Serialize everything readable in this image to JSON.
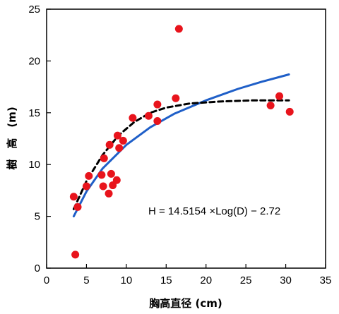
{
  "chart_data": {
    "type": "scatter",
    "xlabel": "胸高直径 (cm)",
    "ylabel": "樹　高　(m)",
    "xlim": [
      0,
      35
    ],
    "ylim": [
      0,
      25
    ],
    "xticks": [
      "0",
      "5",
      "10",
      "15",
      "20",
      "25",
      "30",
      "35"
    ],
    "yticks": [
      "0",
      "5",
      "10",
      "15",
      "20",
      "25"
    ],
    "grid": false,
    "equation": "H =  14.5154 ×Log(D)  − 2.72",
    "colors": {
      "points": "#e8141c",
      "fit_solid": "#1f5fc8",
      "fit_dashed": "#000000"
    },
    "series": [
      {
        "style": "scatter",
        "points": [
          [
            3.4,
            6.9
          ],
          [
            3.6,
            1.3
          ],
          [
            3.9,
            5.9
          ],
          [
            5.0,
            7.9
          ],
          [
            5.3,
            8.9
          ],
          [
            6.9,
            9.0
          ],
          [
            7.1,
            7.9
          ],
          [
            7.2,
            10.6
          ],
          [
            7.8,
            7.2
          ],
          [
            7.9,
            11.9
          ],
          [
            8.1,
            9.1
          ],
          [
            8.3,
            8.0
          ],
          [
            8.8,
            8.5
          ],
          [
            8.9,
            12.8
          ],
          [
            9.1,
            11.6
          ],
          [
            9.6,
            12.3
          ],
          [
            10.8,
            14.5
          ],
          [
            12.8,
            14.7
          ],
          [
            13.9,
            14.2
          ],
          [
            13.9,
            15.8
          ],
          [
            16.2,
            16.4
          ],
          [
            16.6,
            23.1
          ],
          [
            28.1,
            15.7
          ],
          [
            29.2,
            16.6
          ],
          [
            30.5,
            15.1
          ]
        ]
      },
      {
        "style": "line-solid",
        "points": [
          [
            3.4,
            5.0
          ],
          [
            5,
            7.4
          ],
          [
            7,
            9.6
          ],
          [
            10,
            11.9
          ],
          [
            13,
            13.6
          ],
          [
            16,
            14.9
          ],
          [
            20,
            16.2
          ],
          [
            24,
            17.3
          ],
          [
            27,
            18.0
          ],
          [
            30.4,
            18.7
          ]
        ]
      },
      {
        "style": "line-dashed",
        "points": [
          [
            3.4,
            5.7
          ],
          [
            5,
            8.4
          ],
          [
            7,
            10.9
          ],
          [
            9,
            12.8
          ],
          [
            11,
            14.1
          ],
          [
            13,
            15.0
          ],
          [
            15,
            15.5
          ],
          [
            18,
            15.9
          ],
          [
            22,
            16.1
          ],
          [
            26,
            16.2
          ],
          [
            30.4,
            16.2
          ]
        ]
      }
    ]
  }
}
